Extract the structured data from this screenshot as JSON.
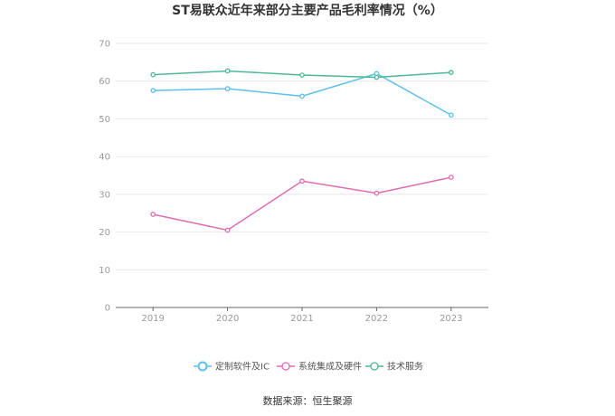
{
  "chart_data": {
    "type": "line",
    "title": "ST易联众近年来部分主要产品毛利率情况（%）",
    "categories": [
      "2019",
      "2020",
      "2021",
      "2022",
      "2023"
    ],
    "ylim": [
      0,
      70
    ],
    "yticks": [
      "0",
      "10",
      "20",
      "30",
      "40",
      "50",
      "60",
      "70"
    ],
    "grid": true,
    "legend_position": "bottom",
    "series": [
      {
        "name": "定制软件及IC",
        "color": "#5bc0eb",
        "values": [
          57.5,
          58.0,
          56.0,
          62.0,
          51.0
        ]
      },
      {
        "name": "系统集成及硬件",
        "color": "#e06bb0",
        "values": [
          24.7,
          20.5,
          33.5,
          30.3,
          34.5
        ]
      },
      {
        "name": "技术服务",
        "color": "#4cb894",
        "values": [
          61.7,
          62.7,
          61.6,
          61.0,
          62.3
        ]
      }
    ],
    "source": "数据来源：恒生聚源"
  }
}
